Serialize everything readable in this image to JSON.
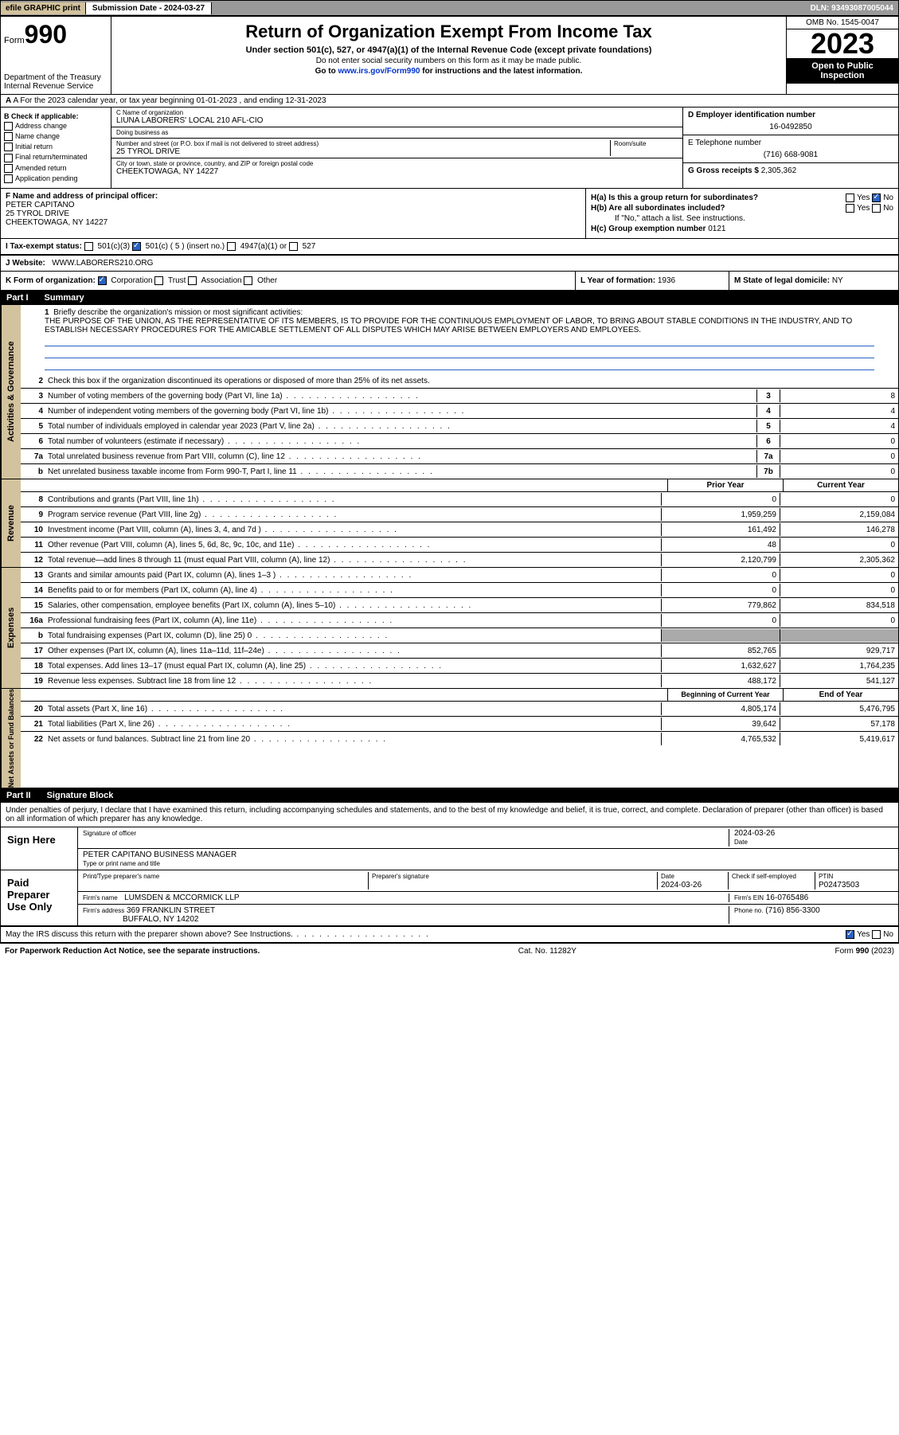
{
  "topbar": {
    "efile": "efile GRAPHIC print",
    "submission": "Submission Date - 2024-03-27",
    "dln": "DLN: 93493087005044"
  },
  "header": {
    "form_prefix": "Form",
    "form_num": "990",
    "title": "Return of Organization Exempt From Income Tax",
    "sub1": "Under section 501(c), 527, or 4947(a)(1) of the Internal Revenue Code (except private foundations)",
    "sub2": "Do not enter social security numbers on this form as it may be made public.",
    "sub3": "Go to www.irs.gov/Form990 for instructions and the latest information.",
    "dept": "Department of the Treasury\nInternal Revenue Service",
    "omb": "OMB No. 1545-0047",
    "year": "2023",
    "open": "Open to Public Inspection"
  },
  "rowA": "A For the 2023 calendar year, or tax year beginning 01-01-2023  , and ending 12-31-2023",
  "B": {
    "label": "B Check if applicable:",
    "items": [
      "Address change",
      "Name change",
      "Initial return",
      "Final return/terminated",
      "Amended return",
      "Application pending"
    ]
  },
  "C": {
    "name_label": "C Name of organization",
    "name": "LIUNA LABORERS' LOCAL 210 AFL-CIO",
    "dba_label": "Doing business as",
    "dba": "",
    "addr_label": "Number and street (or P.O. box if mail is not delivered to street address)",
    "room": "Room/suite",
    "addr": "25 TYROL DRIVE",
    "city_label": "City or town, state or province, country, and ZIP or foreign postal code",
    "city": "CHEEKTOWAGA, NY  14227"
  },
  "D": {
    "label": "D Employer identification number",
    "ein": "16-0492850"
  },
  "E": {
    "label": "E Telephone number",
    "phone": "(716) 668-9081"
  },
  "G": {
    "label": "G Gross receipts $",
    "amount": "2,305,362"
  },
  "F": {
    "label": "F  Name and address of principal officer:",
    "name": "PETER CAPITANO",
    "addr": "25 TYROL DRIVE",
    "city": "CHEEKTOWAGA, NY  14227"
  },
  "H": {
    "a": "H(a)  Is this a group return for subordinates?",
    "b": "H(b)  Are all subordinates included?",
    "attach": "If \"No,\" attach a list. See instructions.",
    "c": "H(c)  Group exemption number ",
    "c_val": "0121",
    "yes": "Yes",
    "no": "No"
  },
  "I": {
    "label": "I  Tax-exempt status:",
    "o1": "501(c)(3)",
    "o2": "501(c) ( 5 ) (insert no.)",
    "o3": "4947(a)(1) or",
    "o4": "527"
  },
  "J": {
    "label": "J  Website:",
    "val": "WWW.LABORERS210.ORG"
  },
  "K": {
    "label": "K Form of organization:",
    "o1": "Corporation",
    "o2": "Trust",
    "o3": "Association",
    "o4": "Other"
  },
  "L": {
    "label": "L Year of formation:",
    "val": "1936"
  },
  "M": {
    "label": "M State of legal domicile:",
    "val": "NY"
  },
  "part1": {
    "label": "Part I",
    "title": "Summary"
  },
  "gov": {
    "tab": "Activities & Governance",
    "l1": "Briefly describe the organization's mission or most significant activities:",
    "mission": "THE PURPOSE OF THE UNION, AS THE REPRESENTATIVE OF ITS MEMBERS, IS TO PROVIDE FOR THE CONTINUOUS EMPLOYMENT OF LABOR, TO BRING ABOUT STABLE CONDITIONS IN THE INDUSTRY, AND TO ESTABLISH NECESSARY PROCEDURES FOR THE AMICABLE SETTLEMENT OF ALL DISPUTES WHICH MAY ARISE BETWEEN EMPLOYERS AND EMPLOYEES.",
    "l2": "Check this box      if the organization discontinued its operations or disposed of more than 25% of its net assets.",
    "rows": [
      {
        "n": "3",
        "d": "Number of voting members of the governing body (Part VI, line 1a)",
        "b": "3",
        "v": "8"
      },
      {
        "n": "4",
        "d": "Number of independent voting members of the governing body (Part VI, line 1b)",
        "b": "4",
        "v": "4"
      },
      {
        "n": "5",
        "d": "Total number of individuals employed in calendar year 2023 (Part V, line 2a)",
        "b": "5",
        "v": "4"
      },
      {
        "n": "6",
        "d": "Total number of volunteers (estimate if necessary)",
        "b": "6",
        "v": "0"
      },
      {
        "n": "7a",
        "d": "Total unrelated business revenue from Part VIII, column (C), line 12",
        "b": "7a",
        "v": "0"
      },
      {
        "n": "b",
        "d": "Net unrelated business taxable income from Form 990-T, Part I, line 11",
        "b": "7b",
        "v": "0"
      }
    ]
  },
  "rev": {
    "tab": "Revenue",
    "h1": "Prior Year",
    "h2": "Current Year",
    "rows": [
      {
        "n": "8",
        "d": "Contributions and grants (Part VIII, line 1h)",
        "p": "0",
        "c": "0"
      },
      {
        "n": "9",
        "d": "Program service revenue (Part VIII, line 2g)",
        "p": "1,959,259",
        "c": "2,159,084"
      },
      {
        "n": "10",
        "d": "Investment income (Part VIII, column (A), lines 3, 4, and 7d )",
        "p": "161,492",
        "c": "146,278"
      },
      {
        "n": "11",
        "d": "Other revenue (Part VIII, column (A), lines 5, 6d, 8c, 9c, 10c, and 11e)",
        "p": "48",
        "c": "0"
      },
      {
        "n": "12",
        "d": "Total revenue—add lines 8 through 11 (must equal Part VIII, column (A), line 12)",
        "p": "2,120,799",
        "c": "2,305,362"
      }
    ]
  },
  "exp": {
    "tab": "Expenses",
    "rows": [
      {
        "n": "13",
        "d": "Grants and similar amounts paid (Part IX, column (A), lines 1–3 )",
        "p": "0",
        "c": "0"
      },
      {
        "n": "14",
        "d": "Benefits paid to or for members (Part IX, column (A), line 4)",
        "p": "0",
        "c": "0"
      },
      {
        "n": "15",
        "d": "Salaries, other compensation, employee benefits (Part IX, column (A), lines 5–10)",
        "p": "779,862",
        "c": "834,518"
      },
      {
        "n": "16a",
        "d": "Professional fundraising fees (Part IX, column (A), line 11e)",
        "p": "0",
        "c": "0"
      },
      {
        "n": "b",
        "d": "Total fundraising expenses (Part IX, column (D), line 25) 0",
        "p": "",
        "c": "",
        "grey": true
      },
      {
        "n": "17",
        "d": "Other expenses (Part IX, column (A), lines 11a–11d, 11f–24e)",
        "p": "852,765",
        "c": "929,717"
      },
      {
        "n": "18",
        "d": "Total expenses. Add lines 13–17 (must equal Part IX, column (A), line 25)",
        "p": "1,632,627",
        "c": "1,764,235"
      },
      {
        "n": "19",
        "d": "Revenue less expenses. Subtract line 18 from line 12",
        "p": "488,172",
        "c": "541,127"
      }
    ]
  },
  "net": {
    "tab": "Net Assets or Fund Balances",
    "h1": "Beginning of Current Year",
    "h2": "End of Year",
    "rows": [
      {
        "n": "20",
        "d": "Total assets (Part X, line 16)",
        "p": "4,805,174",
        "c": "5,476,795"
      },
      {
        "n": "21",
        "d": "Total liabilities (Part X, line 26)",
        "p": "39,642",
        "c": "57,178"
      },
      {
        "n": "22",
        "d": "Net assets or fund balances. Subtract line 21 from line 20",
        "p": "4,765,532",
        "c": "5,419,617"
      }
    ]
  },
  "part2": {
    "label": "Part II",
    "title": "Signature Block"
  },
  "perjury": "Under penalties of perjury, I declare that I have examined this return, including accompanying schedules and statements, and to the best of my knowledge and belief, it is true, correct, and complete. Declaration of preparer (other than officer) is based on all information of which preparer has any knowledge.",
  "sign": {
    "here": "Sign Here",
    "sig_label": "Signature of officer",
    "date_label": "Date",
    "date": "2024-03-26",
    "name": "PETER CAPITANO  BUSINESS MANAGER",
    "name_label": "Type or print name and title"
  },
  "paid": {
    "label": "Paid Preparer Use Only",
    "h1": "Print/Type preparer's name",
    "h2": "Preparer's signature",
    "h3": "Date",
    "h3v": "2024-03-26",
    "h4": "Check       if self-employed",
    "h5": "PTIN",
    "ptin": "P02473503",
    "firm_label": "Firm's name",
    "firm": "LUMSDEN & MCCORMICK LLP",
    "ein_label": "Firm's EIN",
    "ein": "16-0765486",
    "addr_label": "Firm's address",
    "addr": "369 FRANKLIN STREET",
    "city": "BUFFALO, NY  14202",
    "phone_label": "Phone no.",
    "phone": "(716) 856-3300"
  },
  "discuss": "May the IRS discuss this return with the preparer shown above? See Instructions.",
  "footer": {
    "l": "For Paperwork Reduction Act Notice, see the separate instructions.",
    "m": "Cat. No. 11282Y",
    "r": "Form 990 (2023)"
  }
}
